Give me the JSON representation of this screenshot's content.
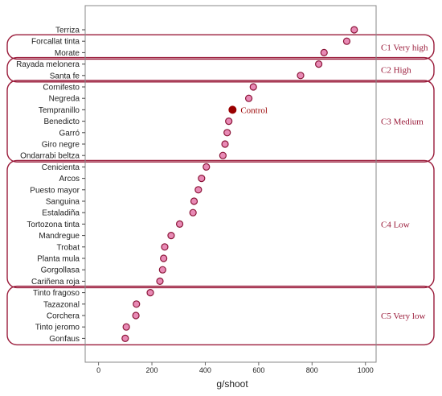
{
  "chart_data": {
    "type": "scatter",
    "xlabel": "g/shoot",
    "xlim": [
      -50,
      1040
    ],
    "xticks": [
      0,
      200,
      400,
      600,
      800,
      1000
    ],
    "categories": [
      "Terriza",
      "Forcallat tinta",
      "Morate",
      "Rayada melonera",
      "Santa fe",
      "Cornifesto",
      "Negreda",
      "Tempranillo",
      "Benedicto",
      "Garró",
      "Giro negre",
      "Ondarrabi beltza",
      "Cenicienta",
      "Arcos",
      "Puesto mayor",
      "Sanguina",
      "Estaladiña",
      "Tortozona tinta",
      "Mandregue",
      "Trobat",
      "Planta mula",
      "Gorgollasa",
      "Cariñena roja",
      "Tinto fragoso",
      "Tazazonal",
      "Corchera",
      "Tinto jeromo",
      "Gonfaus"
    ],
    "series": [
      {
        "values": [
          958,
          930,
          845,
          825,
          757,
          580,
          563,
          null,
          488,
          482,
          474,
          466,
          404,
          386,
          374,
          358,
          354,
          304,
          272,
          248,
          244,
          240,
          230,
          194,
          142,
          140,
          104,
          100
        ]
      }
    ],
    "annotations": [
      {
        "category": "Tempranillo",
        "x": 502,
        "text": "Control",
        "color": "#990000"
      }
    ],
    "groups": [
      {
        "label": "C1 Very high",
        "first": "Forcallat tinta",
        "last": "Morate"
      },
      {
        "label": "C2 High",
        "first": "Rayada melonera",
        "last": "Santa fe"
      },
      {
        "label": "C3 Medium",
        "first": "Cornifesto",
        "last": "Ondarrabi beltza"
      },
      {
        "label": "C4 Low",
        "first": "Cenicienta",
        "last": "Cariñena roja"
      },
      {
        "label": "C5 Very low",
        "first": "Tinto fragoso",
        "last": "Gonfaus"
      }
    ],
    "grid": false,
    "colors": {
      "marker_fill": "#e88ab5",
      "marker_edge": "#8b1538",
      "group_box": "#9a1b3a",
      "group_text": "#9a1b3a",
      "control": "#990000"
    }
  }
}
